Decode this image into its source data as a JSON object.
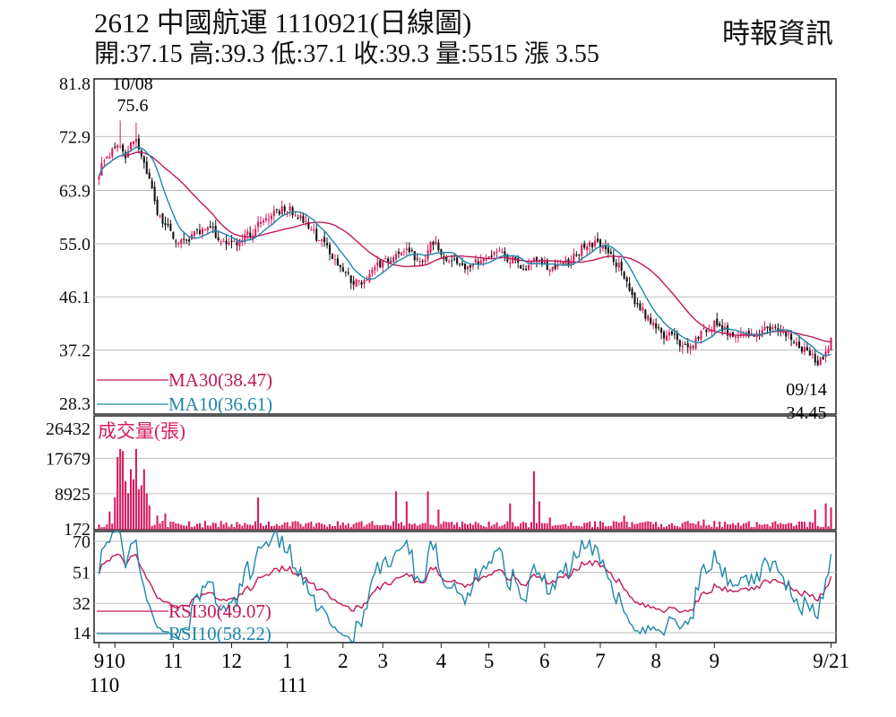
{
  "header": {
    "title": "2612  中國航運 1110921(日線圖)",
    "quote": "開:37.15 高:39.3 低:37.1 收:39.3 量:5515 漲 3.55",
    "source": "時報資訊"
  },
  "colors": {
    "up": "#d81b60",
    "down": "#111111",
    "ma30": "#c2185b",
    "ma10": "#1e88a8",
    "grid": "#bdbdbd",
    "frame": "#222222"
  },
  "chart_data": [
    {
      "type": "candlestick",
      "panel": "price",
      "y_ticks": [
        "81.8",
        "72.9",
        "63.9",
        "55.0",
        "46.1",
        "37.2",
        "28.3"
      ],
      "ylim": [
        28.3,
        81.8
      ],
      "annotations": [
        {
          "date": "10/08",
          "value": "75.6",
          "kind": "high"
        },
        {
          "date": "09/14",
          "value": "34.45",
          "kind": "low"
        }
      ],
      "anchors": [
        {
          "i": 0,
          "v": 67
        },
        {
          "i": 3,
          "v": 69.5
        },
        {
          "i": 7,
          "v": 71
        },
        {
          "i": 10,
          "v": 70
        },
        {
          "i": 14,
          "v": 72.5
        },
        {
          "i": 18,
          "v": 67
        },
        {
          "i": 22,
          "v": 60
        },
        {
          "i": 26,
          "v": 58
        },
        {
          "i": 30,
          "v": 55
        },
        {
          "i": 36,
          "v": 56.5
        },
        {
          "i": 40,
          "v": 58
        },
        {
          "i": 46,
          "v": 56
        },
        {
          "i": 52,
          "v": 55
        },
        {
          "i": 58,
          "v": 57
        },
        {
          "i": 63,
          "v": 59.5
        },
        {
          "i": 68,
          "v": 60.5
        },
        {
          "i": 72,
          "v": 60.8
        },
        {
          "i": 78,
          "v": 58.5
        },
        {
          "i": 84,
          "v": 55
        },
        {
          "i": 90,
          "v": 52
        },
        {
          "i": 96,
          "v": 48
        },
        {
          "i": 100,
          "v": 49
        },
        {
          "i": 105,
          "v": 51.5
        },
        {
          "i": 110,
          "v": 52.5
        },
        {
          "i": 116,
          "v": 54
        },
        {
          "i": 122,
          "v": 52
        },
        {
          "i": 126,
          "v": 55.5
        },
        {
          "i": 130,
          "v": 53
        },
        {
          "i": 135,
          "v": 51.5
        },
        {
          "i": 140,
          "v": 51
        },
        {
          "i": 145,
          "v": 52.5
        },
        {
          "i": 150,
          "v": 53.5
        },
        {
          "i": 155,
          "v": 52.5
        },
        {
          "i": 160,
          "v": 51
        },
        {
          "i": 165,
          "v": 52.5
        },
        {
          "i": 170,
          "v": 50.8
        },
        {
          "i": 176,
          "v": 51.5
        },
        {
          "i": 182,
          "v": 54
        },
        {
          "i": 188,
          "v": 55.5
        },
        {
          "i": 192,
          "v": 54
        },
        {
          "i": 196,
          "v": 51
        },
        {
          "i": 200,
          "v": 47
        },
        {
          "i": 204,
          "v": 44
        },
        {
          "i": 208,
          "v": 42
        },
        {
          "i": 212,
          "v": 40
        },
        {
          "i": 216,
          "v": 39.5
        },
        {
          "i": 220,
          "v": 37.5
        },
        {
          "i": 224,
          "v": 38.5
        },
        {
          "i": 228,
          "v": 40.5
        },
        {
          "i": 232,
          "v": 41.5
        },
        {
          "i": 236,
          "v": 40.5
        },
        {
          "i": 240,
          "v": 39.5
        },
        {
          "i": 244,
          "v": 39.5
        },
        {
          "i": 248,
          "v": 40
        },
        {
          "i": 252,
          "v": 40.5
        },
        {
          "i": 256,
          "v": 40.5
        },
        {
          "i": 260,
          "v": 39.5
        },
        {
          "i": 264,
          "v": 38
        },
        {
          "i": 268,
          "v": 36.5
        },
        {
          "i": 271,
          "v": 35
        },
        {
          "i": 273,
          "v": 35.2
        },
        {
          "i": 275,
          "v": 37.5
        },
        {
          "i": 276,
          "v": 39.3
        }
      ],
      "n_days": 277,
      "series": [
        {
          "name": "MA30(38.47)",
          "period": 30
        },
        {
          "name": "MA10(36.61)",
          "period": 10
        }
      ]
    },
    {
      "type": "bar",
      "panel": "volume",
      "title": "成交量(張)",
      "y_ticks": [
        "26432",
        "17679",
        "8925",
        "172"
      ],
      "ylim": [
        172,
        26432
      ],
      "spikes": [
        {
          "i": 4,
          "v": 4500
        },
        {
          "i": 6,
          "v": 8000
        },
        {
          "i": 7,
          "v": 18000
        },
        {
          "i": 8,
          "v": 20000
        },
        {
          "i": 9,
          "v": 19500
        },
        {
          "i": 10,
          "v": 12000
        },
        {
          "i": 11,
          "v": 9000
        },
        {
          "i": 12,
          "v": 15000
        },
        {
          "i": 13,
          "v": 12500
        },
        {
          "i": 14,
          "v": 20000
        },
        {
          "i": 15,
          "v": 10000
        },
        {
          "i": 16,
          "v": 11000
        },
        {
          "i": 17,
          "v": 15000
        },
        {
          "i": 18,
          "v": 9000
        },
        {
          "i": 19,
          "v": 6000
        },
        {
          "i": 22,
          "v": 3500
        },
        {
          "i": 25,
          "v": 4000
        },
        {
          "i": 60,
          "v": 8000
        },
        {
          "i": 112,
          "v": 9500
        },
        {
          "i": 116,
          "v": 7000
        },
        {
          "i": 124,
          "v": 9500
        },
        {
          "i": 128,
          "v": 5000
        },
        {
          "i": 155,
          "v": 6500
        },
        {
          "i": 164,
          "v": 14500
        },
        {
          "i": 166,
          "v": 7000
        },
        {
          "i": 170,
          "v": 3000
        },
        {
          "i": 198,
          "v": 3500
        },
        {
          "i": 228,
          "v": 2500
        },
        {
          "i": 270,
          "v": 5000
        },
        {
          "i": 274,
          "v": 6500
        },
        {
          "i": 276,
          "v": 5515
        }
      ]
    },
    {
      "type": "line",
      "panel": "rsi",
      "y_ticks": [
        "70",
        "51",
        "32",
        "14"
      ],
      "ylim": [
        8,
        76
      ],
      "series": [
        {
          "name": "RSI30(49.07)",
          "period": 30
        },
        {
          "name": "RSI10(58.22)",
          "period": 10
        }
      ]
    }
  ],
  "x_axis": {
    "ticks": [
      {
        "label": "9",
        "sub": "110",
        "i": 0
      },
      {
        "label": "10",
        "sub": "",
        "i": 6
      },
      {
        "label": "11",
        "sub": "",
        "i": 28
      },
      {
        "label": "12",
        "sub": "",
        "i": 50
      },
      {
        "label": "1",
        "sub": "111",
        "i": 71
      },
      {
        "label": "2",
        "sub": "",
        "i": 92
      },
      {
        "label": "3",
        "sub": "",
        "i": 107
      },
      {
        "label": "4",
        "sub": "",
        "i": 129
      },
      {
        "label": "5",
        "sub": "",
        "i": 147
      },
      {
        "label": "6",
        "sub": "",
        "i": 168
      },
      {
        "label": "7",
        "sub": "",
        "i": 189
      },
      {
        "label": "8",
        "sub": "",
        "i": 210
      },
      {
        "label": "9",
        "sub": "",
        "i": 232
      },
      {
        "label": "9/21",
        "sub": "",
        "i": 276
      }
    ]
  }
}
